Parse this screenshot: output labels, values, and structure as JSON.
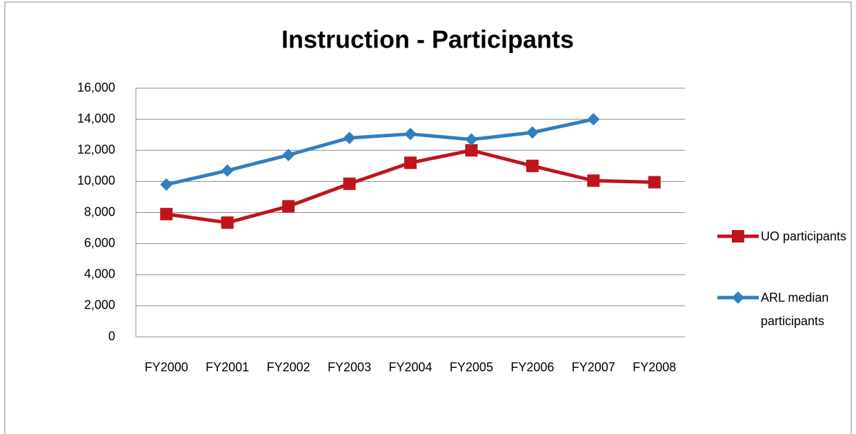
{
  "chart_data": {
    "type": "line",
    "title": "Instruction - Participants",
    "categories": [
      "FY2000",
      "FY2001",
      "FY2002",
      "FY2003",
      "FY2004",
      "FY2005",
      "FY2006",
      "FY2007",
      "FY2008"
    ],
    "series": [
      {
        "name": "UO participants",
        "color": "#c0141c",
        "marker": "square",
        "values": [
          7900,
          7350,
          8400,
          9850,
          11200,
          12000,
          11000,
          10050,
          9950
        ]
      },
      {
        "name": "ARL median participants",
        "color": "#2f7fc1",
        "marker": "diamond",
        "values": [
          9800,
          10700,
          11700,
          12800,
          13050,
          12700,
          13150,
          14000,
          null
        ]
      }
    ],
    "ylim": [
      0,
      16000
    ],
    "yticks": [
      0,
      {
        "value": 2000,
        "label": "2,000"
      },
      {
        "value": 4000,
        "label": "4,000"
      },
      {
        "value": 6000,
        "label": "6,000"
      },
      {
        "value": 8000,
        "label": "8,000"
      },
      {
        "value": 10000,
        "label": "10,000"
      },
      {
        "value": 12000,
        "label": "12,000"
      },
      {
        "value": 14000,
        "label": "14,000"
      },
      {
        "value": 16000,
        "label": "16,000"
      }
    ],
    "grid": true,
    "legend": "right"
  }
}
